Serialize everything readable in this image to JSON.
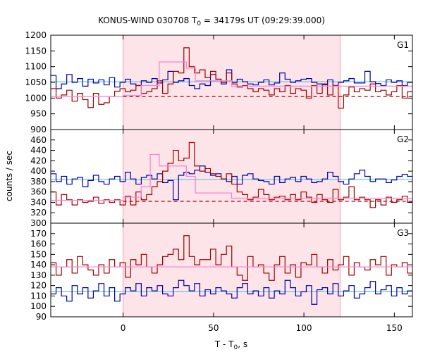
{
  "chart_data": {
    "type": "line",
    "title": "KONUS-WIND 030708 T",
    "title_sub": "0",
    "title_rest": " = 34179s UT (09:29:39.000)",
    "xlabel": "T - T",
    "xlabel_sub": "0",
    "xlabel_rest": ", s",
    "ylabel": "counts / sec",
    "xlim": [
      -40,
      160
    ],
    "x_ticks": [
      0,
      50,
      100,
      150
    ],
    "grid": false,
    "colors": {
      "series_a": "#0000b0",
      "series_b": "#a00000",
      "fit": "#ff80d0",
      "background_level": "#40c0e0",
      "dashed_level": "#a00000",
      "shaded_interval": "#fde4e8"
    },
    "shaded_interval": [
      0,
      120
    ],
    "panels": [
      {
        "label": "G1",
        "ylim": [
          900,
          1200
        ],
        "y_ticks": [
          900,
          950,
          1000,
          1050,
          1100,
          1150,
          1200
        ],
        "background_level": 1052,
        "dashed_level": 1005,
        "series": [
          {
            "color": "series_a",
            "x0": -40,
            "dx": 2.944,
            "values": [
              1072,
              1030,
              1045,
              1075,
              1050,
              1062,
              1038,
              1060,
              1048,
              1058,
              1042,
              1065,
              1035,
              1050,
              1060,
              1045,
              1040,
              1055,
              1050,
              1062,
              1048,
              1058,
              1085,
              1050,
              1055,
              1062,
              1040,
              1030,
              1045,
              1040,
              1075,
              1060,
              1045,
              1090,
              1050,
              1060,
              1052,
              1045,
              1042,
              1050,
              1058,
              1042,
              1048,
              1080,
              1060,
              1050,
              1055,
              1060,
              1062,
              1050,
              1045,
              1042,
              1058,
              1040,
              1050,
              1055,
              1062,
              1048,
              1048,
              1085,
              1052,
              1046,
              1040,
              1058,
              1050,
              1055,
              1040,
              1050,
              1055,
              1050
            ]
          },
          {
            "color": "series_b",
            "x0": -40,
            "dx": 2.944,
            "values": [
              1030,
              1000,
              1010,
              1025,
              990,
              1015,
              995,
              970,
              1015,
              980,
              985,
              1005,
              1022,
              1030,
              1020,
              1025,
              1040,
              1015,
              1020,
              1030,
              1055,
              1015,
              1045,
              1085,
              1080,
              1160,
              1100,
              1080,
              1090,
              1065,
              1085,
              1060,
              1050,
              1080,
              1045,
              1035,
              1040,
              1030,
              1020,
              1030,
              1025,
              1010,
              1030,
              1020,
              1040,
              1015,
              1030,
              1025,
              1000,
              1040,
              1015,
              1045,
              1010,
              1040,
              968,
              1010,
              1035,
              1020,
              1030,
              1025,
              1045,
              1020,
              1025,
              1010,
              1020,
              1040,
              1000,
              1020,
              1035,
              1030
            ]
          }
        ],
        "fit": {
          "color": "fit",
          "x": [
            -40,
            0,
            10,
            20,
            35,
            40,
            60,
            160
          ],
          "y": [
            1005,
            1008,
            1040,
            1115,
            1095,
            1055,
            1038,
            1032
          ]
        }
      },
      {
        "label": "G2",
        "ylim": [
          300,
          480
        ],
        "y_ticks": [
          300,
          320,
          340,
          360,
          380,
          400,
          420,
          440,
          460
        ],
        "background_level": 384,
        "dashed_level": 342,
        "series": [
          {
            "color": "series_a",
            "x0": -40,
            "dx": 2.944,
            "values": [
              395,
              380,
              390,
              375,
              385,
              388,
              370,
              382,
              392,
              380,
              375,
              385,
              390,
              380,
              398,
              385,
              375,
              388,
              392,
              385,
              395,
              378,
              382,
              345,
              392,
              398,
              395,
              402,
              410,
              398,
              392,
              395,
              385,
              380,
              390,
              375,
              392,
              395,
              385,
              382,
              380,
              375,
              390,
              378,
              385,
              388,
              380,
              390,
              385,
              378,
              380,
              385,
              398,
              390,
              380,
              375,
              385,
              395,
              402,
              390,
              380,
              385,
              385,
              378,
              383,
              390,
              394,
              390,
              375,
              385
            ]
          },
          {
            "color": "series_b",
            "x0": -40,
            "dx": 2.944,
            "values": [
              360,
              335,
              355,
              345,
              335,
              345,
              340,
              342,
              350,
              338,
              345,
              340,
              345,
              335,
              352,
              335,
              360,
              345,
              355,
              370,
              380,
              400,
              415,
              440,
              420,
              425,
              455,
              410,
              400,
              405,
              395,
              390,
              385,
              395,
              375,
              360,
              355,
              345,
              350,
              365,
              355,
              345,
              350,
              352,
              345,
              355,
              345,
              360,
              350,
              340,
              355,
              345,
              340,
              365,
              345,
              350,
              370,
              345,
              350,
              345,
              330,
              345,
              335,
              350,
              340,
              345,
              352,
              340,
              355,
              360
            ]
          }
        ],
        "fit": {
          "color": "fit",
          "x": [
            -40,
            0,
            10,
            15,
            20,
            35,
            40,
            60,
            160
          ],
          "y": [
            344,
            350,
            370,
            432,
            410,
            390,
            358,
            348,
            345
          ]
        }
      },
      {
        "label": "G3",
        "ylim": [
          90,
          180
        ],
        "y_ticks": [
          90,
          100,
          110,
          120,
          130,
          140,
          150,
          160,
          170
        ],
        "background_level": 114,
        "series": [
          {
            "color": "series_a",
            "x0": -40,
            "dx": 2.944,
            "values": [
              112,
              118,
              110,
              105,
              120,
              112,
              118,
              108,
              115,
              122,
              110,
              118,
              105,
              112,
              118,
              115,
              122,
              110,
              118,
              115,
              120,
              112,
              110,
              118,
              125,
              120,
              115,
              122,
              110,
              116,
              112,
              118,
              115,
              112,
              108,
              118,
              122,
              112,
              115,
              110,
              118,
              108,
              115,
              112,
              125,
              118,
              110,
              114,
              120,
              102,
              116,
              118,
              112,
              122,
              110,
              115,
              120,
              108,
              112,
              118,
              124,
              112,
              116,
              120,
              110,
              118,
              112,
              115,
              120,
              113
            ]
          },
          {
            "color": "series_b",
            "x0": -40,
            "dx": 2.944,
            "values": [
              142,
              130,
              138,
              145,
              132,
              148,
              140,
              135,
              130,
              140,
              132,
              145,
              138,
              142,
              128,
              145,
              140,
              150,
              138,
              132,
              140,
              148,
              150,
              155,
              145,
              168,
              148,
              140,
              145,
              145,
              155,
              140,
              150,
              158,
              138,
              130,
              125,
              148,
              138,
              140,
              132,
              125,
              140,
              148,
              132,
              140,
              128,
              142,
              140,
              150,
              138,
              132,
              145,
              135,
              140,
              148,
              130,
              142,
              138,
              135,
              145,
              140,
              148,
              130,
              140,
              138,
              142,
              132,
              150,
              140
            ]
          }
        ],
        "fit": {
          "color": "fit",
          "x": [
            -40,
            160
          ],
          "y": [
            138,
            138
          ]
        }
      }
    ]
  }
}
